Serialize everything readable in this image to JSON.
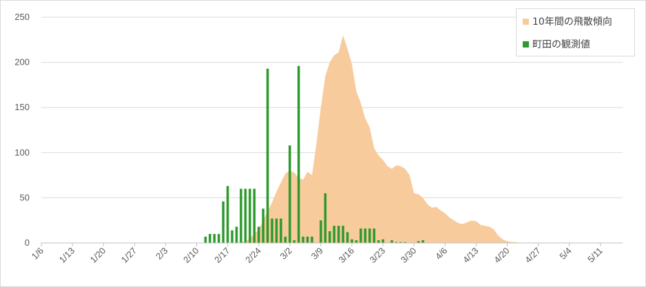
{
  "chart_data": {
    "type": "bar+area",
    "title": "",
    "xlabel": "",
    "ylabel": "",
    "ylim": [
      0,
      250
    ],
    "yticks": [
      0,
      50,
      100,
      150,
      200,
      250
    ],
    "xlim": [
      "1/6",
      "5/16"
    ],
    "xticks": [
      "1/6",
      "1/13",
      "1/20",
      "1/27",
      "2/3",
      "2/10",
      "2/17",
      "2/24",
      "3/2",
      "3/9",
      "3/16",
      "3/23",
      "3/30",
      "4/6",
      "4/13",
      "4/20",
      "4/27",
      "5/4",
      "5/11"
    ],
    "grid": true,
    "legend_position": "top-right",
    "series": [
      {
        "name": "10年間の飛散傾向",
        "kind": "area",
        "color": "#f8cb9c",
        "points": [
          [
            "2/17",
            0
          ],
          [
            "2/19",
            0
          ],
          [
            "2/21",
            2
          ],
          [
            "2/22",
            5
          ],
          [
            "2/24",
            15
          ],
          [
            "2/25",
            25
          ],
          [
            "2/27",
            45
          ],
          [
            "2/28",
            57
          ],
          [
            "3/1",
            77
          ],
          [
            "3/2",
            80
          ],
          [
            "3/3",
            78
          ],
          [
            "3/4",
            72
          ],
          [
            "3/5",
            70
          ],
          [
            "3/6",
            79
          ],
          [
            "3/7",
            75
          ],
          [
            "3/8",
            110
          ],
          [
            "3/9",
            150
          ],
          [
            "3/10",
            185
          ],
          [
            "3/11",
            200
          ],
          [
            "3/12",
            208
          ],
          [
            "3/13",
            211
          ],
          [
            "3/14",
            230
          ],
          [
            "3/15",
            215
          ],
          [
            "3/16",
            198
          ],
          [
            "3/17",
            168
          ],
          [
            "3/18",
            155
          ],
          [
            "3/19",
            138
          ],
          [
            "3/20",
            128
          ],
          [
            "3/21",
            105
          ],
          [
            "3/22",
            97
          ],
          [
            "3/23",
            92
          ],
          [
            "3/24",
            85
          ],
          [
            "3/25",
            82
          ],
          [
            "3/26",
            86
          ],
          [
            "3/27",
            85
          ],
          [
            "3/28",
            82
          ],
          [
            "3/29",
            75
          ],
          [
            "3/30",
            55
          ],
          [
            "3/31",
            54
          ],
          [
            "4/1",
            50
          ],
          [
            "4/2",
            43
          ],
          [
            "4/3",
            39
          ],
          [
            "4/4",
            40
          ],
          [
            "4/5",
            36
          ],
          [
            "4/6",
            33
          ],
          [
            "4/7",
            28
          ],
          [
            "4/8",
            25
          ],
          [
            "4/9",
            22
          ],
          [
            "4/10",
            21
          ],
          [
            "4/11",
            23
          ],
          [
            "4/12",
            25
          ],
          [
            "4/13",
            24
          ],
          [
            "4/14",
            20
          ],
          [
            "4/15",
            19
          ],
          [
            "4/16",
            18
          ],
          [
            "4/17",
            15
          ],
          [
            "4/18",
            8
          ],
          [
            "4/19",
            4
          ],
          [
            "4/20",
            2
          ],
          [
            "4/21",
            1
          ],
          [
            "4/22",
            1
          ],
          [
            "4/23",
            0
          ]
        ]
      },
      {
        "name": "町田の観測値",
        "kind": "bar",
        "color": "#2e9a2e",
        "points": [
          [
            "2/12",
            7
          ],
          [
            "2/13",
            10
          ],
          [
            "2/14",
            10
          ],
          [
            "2/15",
            10
          ],
          [
            "2/16",
            46
          ],
          [
            "2/17",
            63
          ],
          [
            "2/18",
            14
          ],
          [
            "2/19",
            18
          ],
          [
            "2/20",
            60
          ],
          [
            "2/21",
            60
          ],
          [
            "2/22",
            60
          ],
          [
            "2/23",
            60
          ],
          [
            "2/24",
            18
          ],
          [
            "2/25",
            38
          ],
          [
            "2/26",
            193
          ],
          [
            "2/27",
            27
          ],
          [
            "2/28",
            27
          ],
          [
            "2/29",
            27
          ],
          [
            "3/1",
            7
          ],
          [
            "3/2",
            108
          ],
          [
            "3/3",
            3
          ],
          [
            "3/4",
            196
          ],
          [
            "3/5",
            7
          ],
          [
            "3/6",
            7
          ],
          [
            "3/7",
            7
          ],
          [
            "3/9",
            25
          ],
          [
            "3/10",
            55
          ],
          [
            "3/11",
            13
          ],
          [
            "3/12",
            19
          ],
          [
            "3/13",
            19
          ],
          [
            "3/14",
            19
          ],
          [
            "3/15",
            12
          ],
          [
            "3/16",
            4
          ],
          [
            "3/17",
            3
          ],
          [
            "3/18",
            16
          ],
          [
            "3/19",
            16
          ],
          [
            "3/20",
            16
          ],
          [
            "3/21",
            16
          ],
          [
            "3/22",
            3
          ],
          [
            "3/23",
            4
          ],
          [
            "3/25",
            3
          ],
          [
            "3/26",
            1
          ],
          [
            "3/27",
            1
          ],
          [
            "3/28",
            1
          ],
          [
            "3/31",
            2
          ],
          [
            "4/1",
            3
          ]
        ]
      }
    ]
  }
}
